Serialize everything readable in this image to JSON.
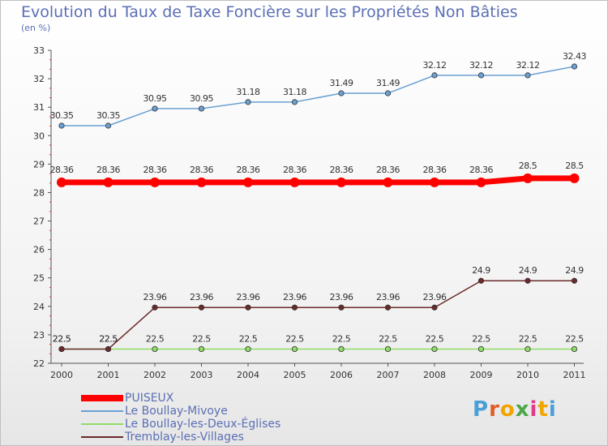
{
  "title": "Evolution du Taux de Taxe Foncière sur les Propriétés Non Bâties",
  "subtitle": "(en %)",
  "logo": {
    "letters": [
      "P",
      "r",
      "o",
      "x",
      "i",
      "t",
      "i"
    ],
    "colors": [
      "#4a9fd8",
      "#e05c2a",
      "#f2a400",
      "#4aa84a",
      "#e03a8a",
      "#f2a400",
      "#4a9fd8"
    ]
  },
  "chart_data": {
    "type": "line",
    "x": [
      "2000",
      "2001",
      "2002",
      "2003",
      "2004",
      "2005",
      "2006",
      "2007",
      "2008",
      "2009",
      "2010",
      "2011"
    ],
    "ylim": [
      22,
      33
    ],
    "yticks": [
      "22",
      "23",
      "24",
      "25",
      "26",
      "27",
      "28",
      "29",
      "30",
      "31",
      "32",
      "33"
    ],
    "grid": false,
    "series": [
      {
        "name": "PUISEUX",
        "color": "#ff0000",
        "values": [
          28.36,
          28.36,
          28.36,
          28.36,
          28.36,
          28.36,
          28.36,
          28.36,
          28.36,
          28.36,
          28.5,
          28.5
        ],
        "labels": [
          "28.36",
          "28.36",
          "28.36",
          "28.36",
          "28.36",
          "28.36",
          "28.36",
          "28.36",
          "28.36",
          "28.36",
          "28.5",
          "28.5"
        ]
      },
      {
        "name": "Le Boullay-Mivoye",
        "color": "#6aa0d2",
        "values": [
          30.35,
          30.35,
          30.95,
          30.95,
          31.18,
          31.18,
          31.49,
          31.49,
          32.12,
          32.12,
          32.12,
          32.43
        ],
        "labels": [
          "30.35",
          "30.35",
          "30.95",
          "30.95",
          "31.18",
          "31.18",
          "31.49",
          "31.49",
          "32.12",
          "32.12",
          "32.12",
          "32.43"
        ]
      },
      {
        "name": "Le Boullay-les-Deux-Églises",
        "color": "#90dd66",
        "values": [
          22.5,
          22.5,
          22.5,
          22.5,
          22.5,
          22.5,
          22.5,
          22.5,
          22.5,
          22.5,
          22.5,
          22.5
        ],
        "labels": [
          "22.5",
          "22.5",
          "22.5",
          "22.5",
          "22.5",
          "22.5",
          "22.5",
          "22.5",
          "22.5",
          "22.5",
          "22.5",
          "22.5"
        ]
      },
      {
        "name": "Tremblay-les-Villages",
        "color": "#6b2a2a",
        "values": [
          22.5,
          22.5,
          23.96,
          23.96,
          23.96,
          23.96,
          23.96,
          23.96,
          23.96,
          24.9,
          24.9,
          24.9
        ],
        "labels": [
          "22.5",
          "22.5",
          "23.96",
          "23.96",
          "23.96",
          "23.96",
          "23.96",
          "23.96",
          "23.96",
          "24.9",
          "24.9",
          "24.9"
        ]
      }
    ]
  }
}
